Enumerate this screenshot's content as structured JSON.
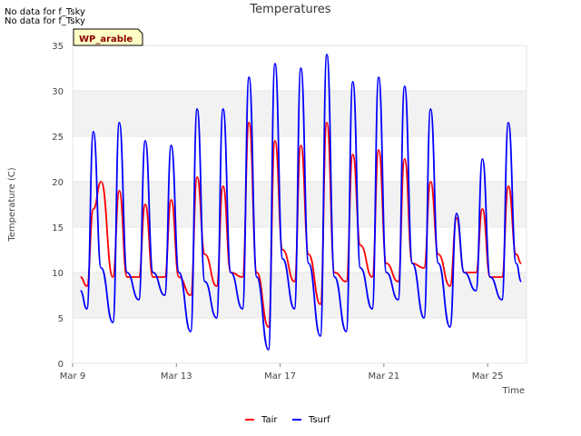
{
  "notes": [
    "No data for f_Tsky",
    "No data for f_Tsky"
  ],
  "site_label": "WP_arable",
  "chart_data": {
    "type": "line",
    "title": "Temperatures",
    "xlabel": "Time",
    "ylabel": "Temperature (C)",
    "ylim": [
      0,
      35
    ],
    "yticks": [
      0,
      5,
      10,
      15,
      20,
      25,
      30,
      35
    ],
    "xlim_days": [
      0,
      17.5
    ],
    "xticks": [
      {
        "day": 0,
        "label": "Mar 9"
      },
      {
        "day": 4,
        "label": "Mar 13"
      },
      {
        "day": 8,
        "label": "Mar 17"
      },
      {
        "day": 12,
        "label": "Mar 21"
      },
      {
        "day": 16,
        "label": "Mar 25"
      }
    ],
    "grid_bands": true,
    "legend_position": "bottom-center",
    "series": [
      {
        "name": "Tair",
        "color": "#ff0000",
        "x": [
          0.3,
          0.55,
          0.8,
          1.1,
          1.55,
          1.8,
          2.1,
          2.55,
          2.8,
          3.1,
          3.55,
          3.8,
          4.1,
          4.55,
          4.8,
          5.1,
          5.55,
          5.8,
          6.1,
          6.55,
          6.8,
          7.1,
          7.55,
          7.8,
          8.1,
          8.55,
          8.8,
          9.1,
          9.55,
          9.8,
          10.1,
          10.55,
          10.8,
          11.1,
          11.55,
          11.8,
          12.1,
          12.55,
          12.8,
          13.1,
          13.55,
          13.8,
          14.1,
          14.55,
          14.8,
          15.1,
          15.55,
          15.8,
          16.1,
          16.55,
          16.8,
          17.1,
          17.3
        ],
        "y": [
          9.5,
          8.5,
          17,
          20,
          9.5,
          19,
          9.5,
          9.5,
          17.5,
          9.5,
          9.5,
          18,
          9.5,
          7.5,
          20.5,
          12,
          8.5,
          19.5,
          10,
          9.5,
          26.5,
          10,
          4.0,
          24.5,
          12.5,
          9,
          24,
          12,
          6.5,
          26.5,
          10,
          9,
          23,
          13,
          9.5,
          23.5,
          11,
          9,
          22.5,
          11,
          10.5,
          20,
          12,
          8.5,
          16,
          10,
          10,
          17,
          9.5,
          9.5,
          19.5,
          12,
          11
        ]
      },
      {
        "name": "Tsurf",
        "color": "#0000ff",
        "x": [
          0.3,
          0.55,
          0.8,
          1.1,
          1.55,
          1.8,
          2.1,
          2.55,
          2.8,
          3.1,
          3.55,
          3.8,
          4.1,
          4.55,
          4.8,
          5.1,
          5.55,
          5.8,
          6.1,
          6.55,
          6.8,
          7.1,
          7.55,
          7.8,
          8.1,
          8.55,
          8.8,
          9.1,
          9.55,
          9.8,
          10.1,
          10.55,
          10.8,
          11.1,
          11.55,
          11.8,
          12.1,
          12.55,
          12.8,
          13.1,
          13.55,
          13.8,
          14.1,
          14.55,
          14.8,
          15.1,
          15.55,
          15.8,
          16.1,
          16.55,
          16.8,
          17.1,
          17.3
        ],
        "y": [
          8,
          6,
          25.5,
          10.5,
          4.5,
          26.5,
          10,
          7,
          24.5,
          10,
          7.5,
          24,
          10,
          3.5,
          28,
          9,
          5,
          28,
          10,
          6,
          31.5,
          9.5,
          1.5,
          33,
          11.5,
          6,
          32.5,
          11,
          3.0,
          34,
          9.5,
          3.5,
          31,
          10.5,
          6,
          31.5,
          10,
          7,
          30.5,
          11,
          5,
          28,
          11,
          4,
          16.5,
          10,
          8,
          22.5,
          9.5,
          7,
          26.5,
          11,
          9
        ]
      }
    ]
  }
}
